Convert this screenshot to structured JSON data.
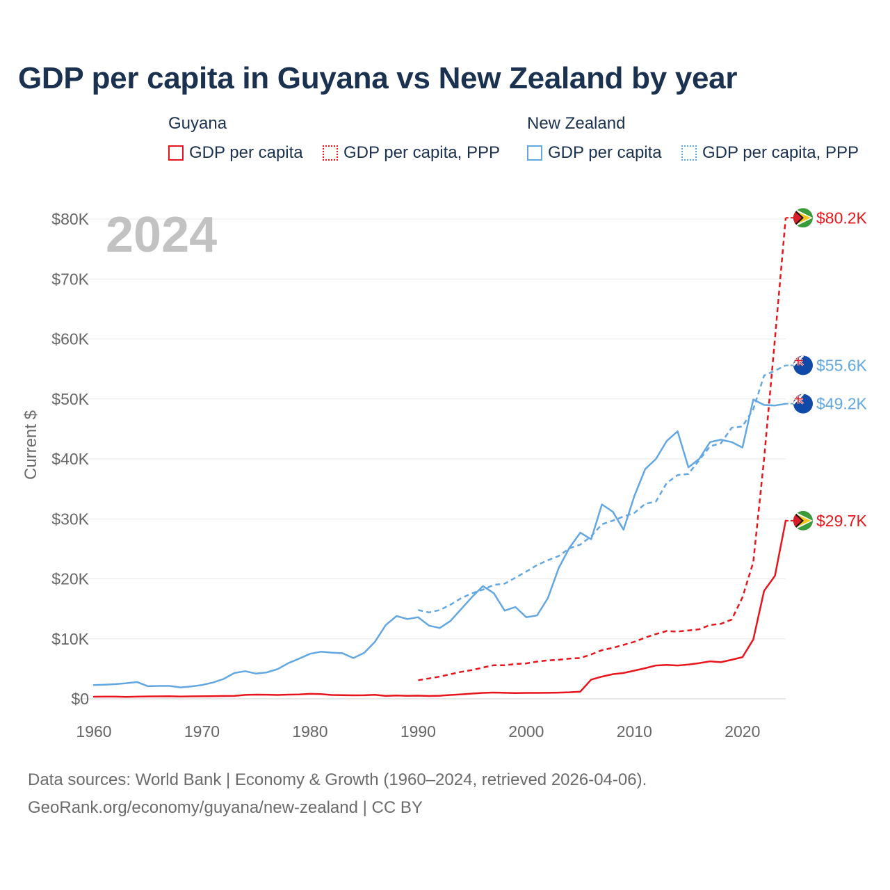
{
  "title": "GDP per capita in Guyana vs New Zealand by year",
  "legend": {
    "groups": [
      {
        "name": "Guyana",
        "items": [
          "GDP per capita",
          "GDP per capita, PPP"
        ],
        "color": "#e8141b"
      },
      {
        "name": "New Zealand",
        "items": [
          "GDP per capita",
          "GDP per capita, PPP"
        ],
        "color": "#63a7e2"
      }
    ]
  },
  "year_label": "2024",
  "footer": {
    "line1": "Data sources: World Bank | Economy & Growth (1960–2024, retrieved 2026-04-06).",
    "line2": "GeoRank.org/economy/guyana/new-zealand | CC BY"
  },
  "chart_data": {
    "type": "line",
    "title": "GDP per capita in Guyana vs New Zealand by year",
    "xlabel": "",
    "ylabel": "Current $",
    "xlim": [
      1960,
      2024
    ],
    "ylim": [
      0,
      80000
    ],
    "x_ticks": [
      1960,
      1970,
      1980,
      1990,
      2000,
      2010,
      2020
    ],
    "y_ticks": [
      0,
      10000,
      20000,
      30000,
      40000,
      50000,
      60000,
      70000,
      80000
    ],
    "y_tick_labels": [
      "$0",
      "$10K",
      "$20K",
      "$30K",
      "$40K",
      "$50K",
      "$60K",
      "$70K",
      "$80K"
    ],
    "grid": true,
    "series": [
      {
        "name": "Guyana GDP per capita",
        "color": "#e8141b",
        "dash": false,
        "end_label": "$29.7K",
        "points": [
          [
            1960,
            350
          ],
          [
            1961,
            360
          ],
          [
            1962,
            355
          ],
          [
            1963,
            330
          ],
          [
            1964,
            360
          ],
          [
            1965,
            390
          ],
          [
            1966,
            400
          ],
          [
            1967,
            420
          ],
          [
            1968,
            380
          ],
          [
            1969,
            400
          ],
          [
            1970,
            420
          ],
          [
            1971,
            440
          ],
          [
            1972,
            460
          ],
          [
            1973,
            480
          ],
          [
            1974,
            650
          ],
          [
            1975,
            700
          ],
          [
            1976,
            680
          ],
          [
            1977,
            640
          ],
          [
            1978,
            700
          ],
          [
            1979,
            720
          ],
          [
            1980,
            820
          ],
          [
            1981,
            790
          ],
          [
            1982,
            640
          ],
          [
            1983,
            620
          ],
          [
            1984,
            580
          ],
          [
            1985,
            590
          ],
          [
            1986,
            660
          ],
          [
            1987,
            480
          ],
          [
            1988,
            540
          ],
          [
            1989,
            500
          ],
          [
            1990,
            520
          ],
          [
            1991,
            460
          ],
          [
            1992,
            510
          ],
          [
            1993,
            640
          ],
          [
            1994,
            740
          ],
          [
            1995,
            870
          ],
          [
            1996,
            980
          ],
          [
            1997,
            1040
          ],
          [
            1998,
            1000
          ],
          [
            1999,
            960
          ],
          [
            2000,
            990
          ],
          [
            2001,
            990
          ],
          [
            2002,
            1000
          ],
          [
            2003,
            1030
          ],
          [
            2004,
            1090
          ],
          [
            2005,
            1190
          ],
          [
            2006,
            3200
          ],
          [
            2007,
            3700
          ],
          [
            2008,
            4100
          ],
          [
            2009,
            4300
          ],
          [
            2010,
            4700
          ],
          [
            2011,
            5100
          ],
          [
            2012,
            5550
          ],
          [
            2013,
            5650
          ],
          [
            2014,
            5550
          ],
          [
            2015,
            5700
          ],
          [
            2016,
            5950
          ],
          [
            2017,
            6250
          ],
          [
            2018,
            6100
          ],
          [
            2019,
            6500
          ],
          [
            2020,
            6950
          ],
          [
            2021,
            9900
          ],
          [
            2022,
            18000
          ],
          [
            2023,
            20500
          ],
          [
            2024,
            29700
          ]
        ]
      },
      {
        "name": "Guyana GDP per capita, PPP",
        "color": "#e8141b",
        "dash": true,
        "end_label": "$80.2K",
        "points": [
          [
            1990,
            3100
          ],
          [
            1991,
            3400
          ],
          [
            1992,
            3700
          ],
          [
            1993,
            4100
          ],
          [
            1994,
            4500
          ],
          [
            1995,
            4800
          ],
          [
            1996,
            5200
          ],
          [
            1997,
            5600
          ],
          [
            1998,
            5600
          ],
          [
            1999,
            5800
          ],
          [
            2000,
            5900
          ],
          [
            2001,
            6200
          ],
          [
            2002,
            6400
          ],
          [
            2003,
            6500
          ],
          [
            2004,
            6700
          ],
          [
            2005,
            6800
          ],
          [
            2006,
            7400
          ],
          [
            2007,
            8100
          ],
          [
            2008,
            8500
          ],
          [
            2009,
            9000
          ],
          [
            2010,
            9500
          ],
          [
            2011,
            10200
          ],
          [
            2012,
            10800
          ],
          [
            2013,
            11300
          ],
          [
            2014,
            11200
          ],
          [
            2015,
            11400
          ],
          [
            2016,
            11600
          ],
          [
            2017,
            12300
          ],
          [
            2018,
            12500
          ],
          [
            2019,
            13200
          ],
          [
            2020,
            16900
          ],
          [
            2021,
            22800
          ],
          [
            2022,
            40000
          ],
          [
            2023,
            60000
          ],
          [
            2024,
            80200
          ]
        ]
      },
      {
        "name": "New Zealand GDP per capita",
        "color": "#63a7e2",
        "dash": false,
        "end_label": "$49.2K",
        "points": [
          [
            1960,
            2300
          ],
          [
            1961,
            2350
          ],
          [
            1962,
            2450
          ],
          [
            1963,
            2600
          ],
          [
            1964,
            2800
          ],
          [
            1965,
            2100
          ],
          [
            1966,
            2150
          ],
          [
            1967,
            2150
          ],
          [
            1968,
            1900
          ],
          [
            1969,
            2050
          ],
          [
            1970,
            2300
          ],
          [
            1971,
            2700
          ],
          [
            1972,
            3300
          ],
          [
            1973,
            4300
          ],
          [
            1974,
            4600
          ],
          [
            1975,
            4200
          ],
          [
            1976,
            4400
          ],
          [
            1977,
            4950
          ],
          [
            1978,
            5950
          ],
          [
            1979,
            6700
          ],
          [
            1980,
            7500
          ],
          [
            1981,
            7850
          ],
          [
            1982,
            7700
          ],
          [
            1983,
            7600
          ],
          [
            1984,
            6800
          ],
          [
            1985,
            7650
          ],
          [
            1986,
            9500
          ],
          [
            1987,
            12300
          ],
          [
            1988,
            13800
          ],
          [
            1989,
            13300
          ],
          [
            1990,
            13600
          ],
          [
            1991,
            12200
          ],
          [
            1992,
            11800
          ],
          [
            1993,
            13000
          ],
          [
            1994,
            15000
          ],
          [
            1995,
            17000
          ],
          [
            1996,
            18800
          ],
          [
            1997,
            17600
          ],
          [
            1998,
            14700
          ],
          [
            1999,
            15300
          ],
          [
            2000,
            13600
          ],
          [
            2001,
            13900
          ],
          [
            2002,
            16800
          ],
          [
            2003,
            21800
          ],
          [
            2004,
            25200
          ],
          [
            2005,
            27700
          ],
          [
            2006,
            26600
          ],
          [
            2007,
            32400
          ],
          [
            2008,
            31200
          ],
          [
            2009,
            28200
          ],
          [
            2010,
            33800
          ],
          [
            2011,
            38300
          ],
          [
            2012,
            40000
          ],
          [
            2013,
            43000
          ],
          [
            2014,
            44600
          ],
          [
            2015,
            38600
          ],
          [
            2016,
            40000
          ],
          [
            2017,
            42800
          ],
          [
            2018,
            43200
          ],
          [
            2019,
            42800
          ],
          [
            2020,
            41900
          ],
          [
            2021,
            49900
          ],
          [
            2022,
            49000
          ],
          [
            2023,
            48900
          ],
          [
            2024,
            49200
          ]
        ]
      },
      {
        "name": "New Zealand GDP per capita, PPP",
        "color": "#63a7e2",
        "dash": true,
        "end_label": "$55.6K",
        "points": [
          [
            1990,
            14800
          ],
          [
            1991,
            14400
          ],
          [
            1992,
            14800
          ],
          [
            1993,
            15700
          ],
          [
            1994,
            16800
          ],
          [
            1995,
            17600
          ],
          [
            1996,
            18200
          ],
          [
            1997,
            19000
          ],
          [
            1998,
            19200
          ],
          [
            1999,
            20200
          ],
          [
            2000,
            21200
          ],
          [
            2001,
            22300
          ],
          [
            2002,
            23100
          ],
          [
            2003,
            23800
          ],
          [
            2004,
            25100
          ],
          [
            2005,
            25700
          ],
          [
            2006,
            27100
          ],
          [
            2007,
            29100
          ],
          [
            2008,
            29700
          ],
          [
            2009,
            30400
          ],
          [
            2010,
            31000
          ],
          [
            2011,
            32500
          ],
          [
            2012,
            32900
          ],
          [
            2013,
            36000
          ],
          [
            2014,
            37300
          ],
          [
            2015,
            37500
          ],
          [
            2016,
            39800
          ],
          [
            2017,
            42100
          ],
          [
            2018,
            42600
          ],
          [
            2019,
            45200
          ],
          [
            2020,
            45400
          ],
          [
            2021,
            48300
          ],
          [
            2022,
            53900
          ],
          [
            2023,
            54700
          ],
          [
            2024,
            55600
          ]
        ]
      }
    ]
  }
}
